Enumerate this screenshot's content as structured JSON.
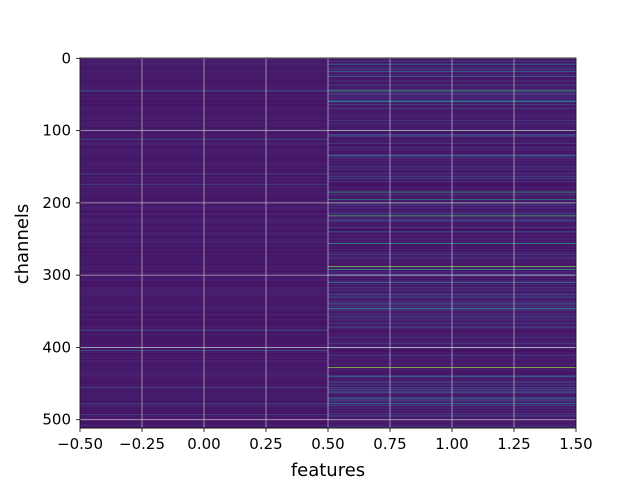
{
  "chart_data": {
    "type": "heatmap",
    "title": "",
    "xlabel": "features",
    "ylabel": "channels",
    "xlim": [
      -0.5,
      1.5
    ],
    "ylim": [
      511.5,
      -0.5
    ],
    "grid": true,
    "colormap": "viridis",
    "n_rows": 512,
    "n_cols": 2,
    "x_ticks": [
      -0.5,
      -0.25,
      0.0,
      0.25,
      0.5,
      0.75,
      1.0,
      1.25,
      1.5
    ],
    "x_tick_labels": [
      "−0.50",
      "−0.25",
      "0.00",
      "0.25",
      "0.50",
      "0.75",
      "1.00",
      "1.25",
      "1.50"
    ],
    "y_ticks": [
      0,
      100,
      200,
      300,
      400,
      500
    ],
    "y_tick_labels": [
      "0",
      "100",
      "200",
      "300",
      "400",
      "500"
    ],
    "background_level": [
      0.06,
      0.12
    ],
    "highlight_rows": {
      "col_0": [
        {
          "row": 45,
          "value": 0.45
        },
        {
          "row": 112,
          "value": 0.38
        },
        {
          "row": 160,
          "value": 0.35
        },
        {
          "row": 175,
          "value": 0.3
        },
        {
          "row": 376,
          "value": 0.42
        },
        {
          "row": 404,
          "value": 0.4
        },
        {
          "row": 455,
          "value": 0.3
        },
        {
          "row": 478,
          "value": 0.33
        },
        {
          "row": 493,
          "value": 0.25
        }
      ],
      "col_1": [
        {
          "row": 8,
          "value": 0.55
        },
        {
          "row": 18,
          "value": 0.45
        },
        {
          "row": 25,
          "value": 0.4
        },
        {
          "row": 45,
          "value": 0.75
        },
        {
          "row": 60,
          "value": 0.6
        },
        {
          "row": 100,
          "value": 0.65
        },
        {
          "row": 135,
          "value": 0.5
        },
        {
          "row": 185,
          "value": 0.72
        },
        {
          "row": 195,
          "value": 0.6
        },
        {
          "row": 200,
          "value": 0.5
        },
        {
          "row": 218,
          "value": 0.78
        },
        {
          "row": 240,
          "value": 0.45
        },
        {
          "row": 256,
          "value": 0.65
        },
        {
          "row": 288,
          "value": 0.85
        },
        {
          "row": 292,
          "value": 0.7
        },
        {
          "row": 310,
          "value": 0.5
        },
        {
          "row": 346,
          "value": 0.55
        },
        {
          "row": 400,
          "value": 0.55
        },
        {
          "row": 428,
          "value": 0.88
        },
        {
          "row": 440,
          "value": 0.5
        },
        {
          "row": 470,
          "value": 0.6
        },
        {
          "row": 478,
          "value": 0.55
        }
      ]
    }
  }
}
